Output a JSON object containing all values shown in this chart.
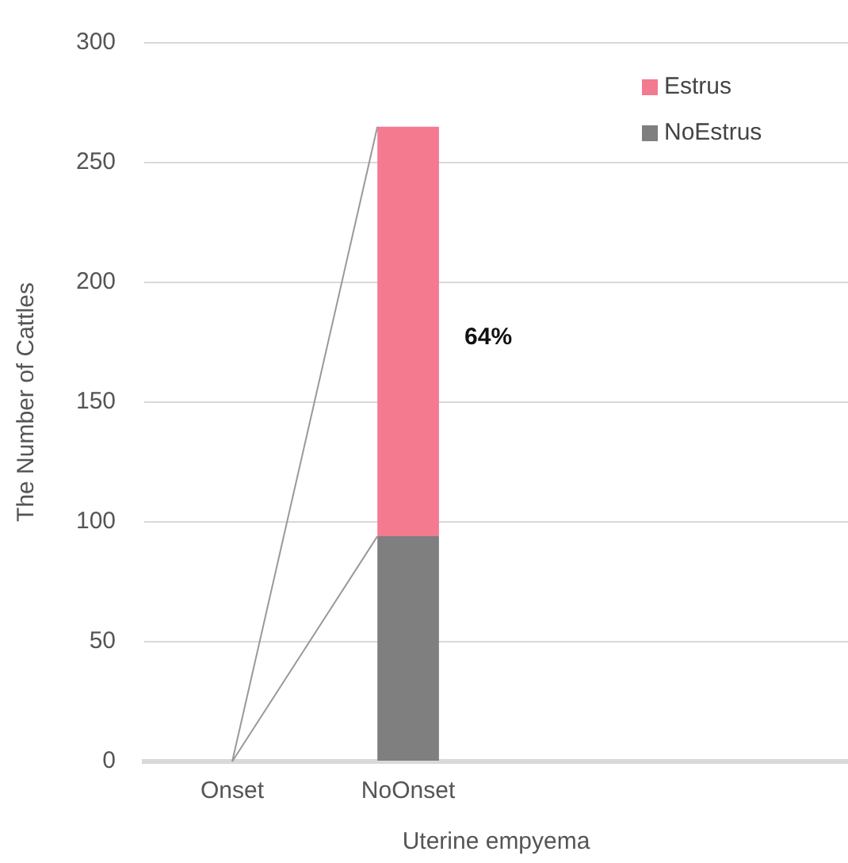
{
  "chart_data": {
    "type": "bar",
    "stacked": true,
    "categories": [
      "Onset",
      "NoOnset",
      null,
      null
    ],
    "series": [
      {
        "name": "NoEstrus",
        "color": "#7f7f7f",
        "values": [
          0,
          94,
          null,
          null
        ]
      },
      {
        "name": "Estrus",
        "color": "#f47a90",
        "values": [
          0,
          171,
          null,
          null
        ]
      }
    ],
    "xlabel": "Uterine empyema",
    "ylabel": "The Number of Cattles",
    "ylim": [
      0,
      300
    ],
    "yticks": [
      0,
      50,
      100,
      150,
      200,
      250,
      300
    ],
    "grid": "y",
    "legend": "top right",
    "annotations": [
      "64%"
    ]
  }
}
